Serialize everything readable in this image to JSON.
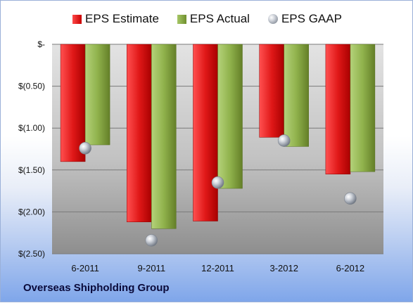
{
  "legend": {
    "estimate": "EPS Estimate",
    "actual": "EPS Actual",
    "gaap": "EPS GAAP"
  },
  "company": "Overseas Shipholding Group",
  "colors": {
    "estimate": "#d11a1a",
    "actual": "#8fb14a",
    "gaap": "#9aa0a8"
  },
  "chart_data": {
    "type": "bar",
    "categories": [
      "6-2011",
      "9-2011",
      "12-2011",
      "3-2012",
      "6-2012"
    ],
    "series": [
      {
        "name": "EPS Estimate",
        "values": [
          -1.4,
          -2.12,
          -2.11,
          -1.11,
          -1.55
        ]
      },
      {
        "name": "EPS Actual",
        "values": [
          -1.2,
          -2.2,
          -1.72,
          -1.22,
          -1.52
        ]
      },
      {
        "name": "EPS GAAP",
        "values": [
          -1.24,
          -2.34,
          -1.65,
          -1.15,
          -1.84
        ]
      }
    ],
    "ylim": [
      -2.5,
      0
    ],
    "yticks": [
      0,
      -0.5,
      -1.0,
      -1.5,
      -2.0,
      -2.5
    ],
    "ytick_labels": [
      "$-",
      "$(0.50)",
      "$(1.00)",
      "$(1.50)",
      "$(2.00)",
      "$(2.50)"
    ],
    "grid": true,
    "legend_position": "top"
  }
}
